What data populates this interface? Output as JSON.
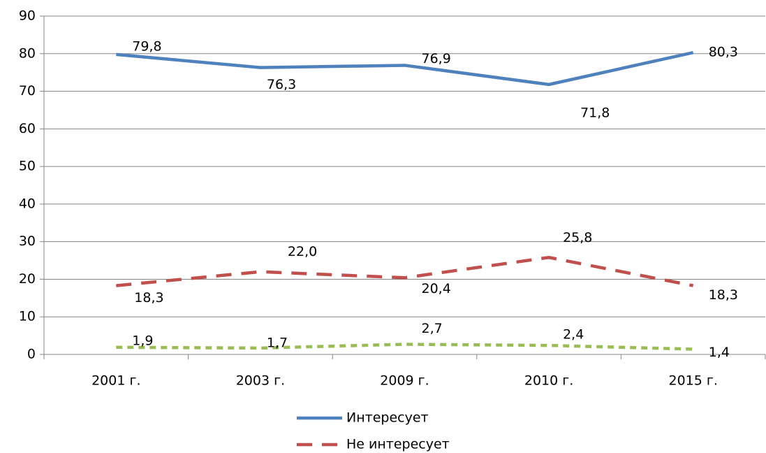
{
  "chart_data": {
    "type": "line",
    "categories": [
      "2001 г.",
      "2003 г.",
      "2009 г.",
      "2010 г.",
      "2015 г."
    ],
    "series": [
      {
        "name": "Интересует",
        "color": "#4f81bd",
        "dash": "solid",
        "values": [
          79.8,
          76.3,
          76.9,
          71.8,
          80.3
        ],
        "value_labels": [
          "79,8",
          "76,3",
          "76,9",
          "71,8",
          "80,3"
        ]
      },
      {
        "name": "Не интересует",
        "color": "#c0504d",
        "dash": "dashed",
        "values": [
          18.3,
          22.0,
          20.4,
          25.8,
          18.3
        ],
        "value_labels": [
          "18,3",
          "22,0",
          "20,4",
          "25,8",
          "18,3"
        ]
      },
      {
        "color": "#9bbb59",
        "dash": "dotted",
        "values": [
          1.9,
          1.7,
          2.7,
          2.4,
          1.4
        ],
        "value_labels": [
          "1,9",
          "1,7",
          "2,7",
          "2,4",
          "1,4"
        ]
      }
    ],
    "ylim": [
      0,
      90
    ],
    "yticks": [
      0,
      10,
      20,
      30,
      40,
      50,
      60,
      70,
      80,
      90
    ],
    "grid": true,
    "legend": "bottom"
  }
}
